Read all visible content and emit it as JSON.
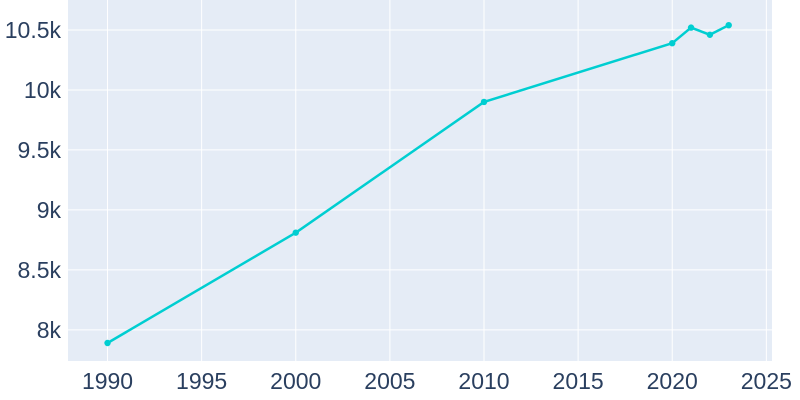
{
  "chart_data": {
    "type": "line",
    "series": [
      {
        "name": "population",
        "x": [
          1990,
          2000,
          2010,
          2020,
          2021,
          2022,
          2023
        ],
        "y": [
          7890,
          8810,
          9900,
          10390,
          10520,
          10460,
          10540
        ]
      }
    ],
    "title": "",
    "xlabel": "",
    "ylabel": "",
    "xlim": [
      1987.9,
      2025.3
    ],
    "ylim": [
      7740,
      10750
    ],
    "x_ticks": [
      1990,
      1995,
      2000,
      2005,
      2010,
      2015,
      2020,
      2025
    ],
    "x_tick_labels": [
      "1990",
      "1995",
      "2000",
      "2005",
      "2010",
      "2015",
      "2020",
      "2025"
    ],
    "y_ticks": [
      8000,
      8500,
      9000,
      9500,
      10000,
      10500
    ],
    "y_tick_labels": [
      "8k",
      "8.5k",
      "9k",
      "9.5k",
      "10k",
      "10.5k"
    ],
    "grid": true,
    "legend": false,
    "markers": true,
    "colors": {
      "line": "#00CED1",
      "plot_bg": "#e5ecf6",
      "grid": "#ffffff",
      "tick_text": "#2a3f5f",
      "page_bg": "#ffffff"
    }
  }
}
